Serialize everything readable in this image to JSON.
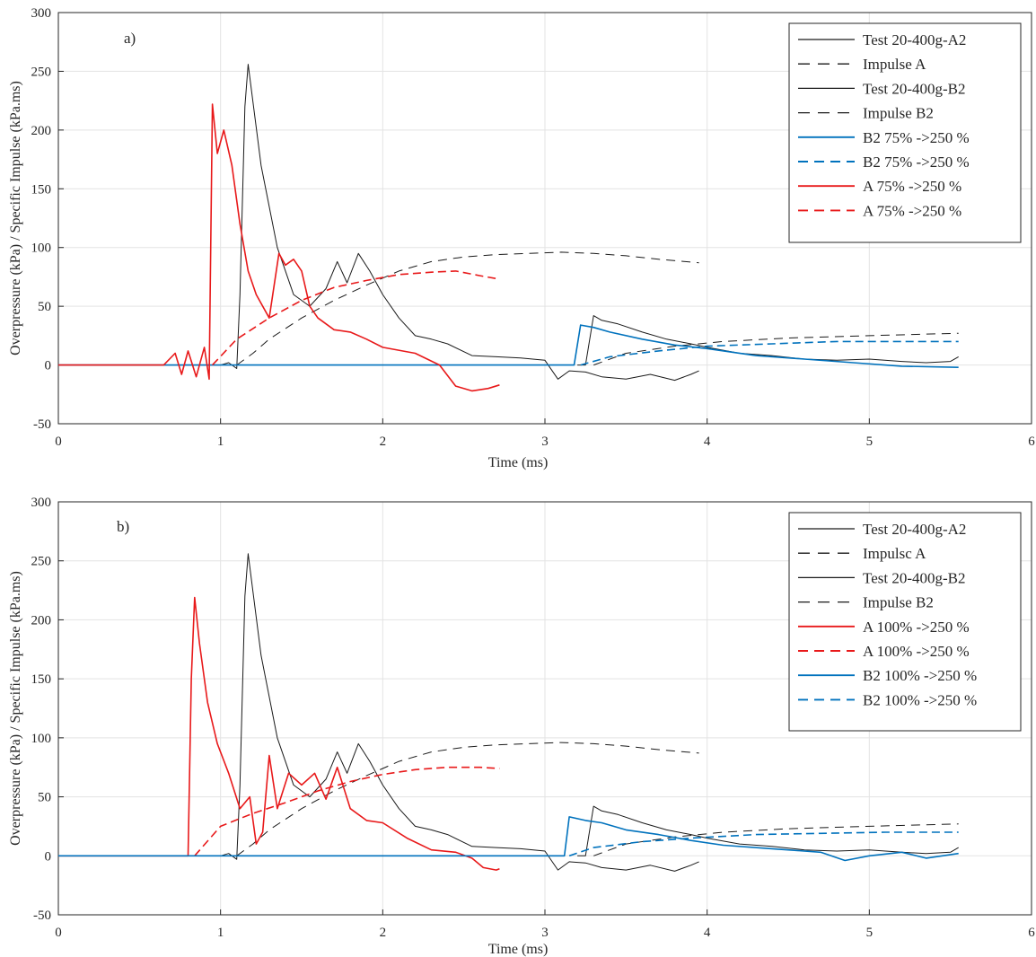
{
  "chart_data": [
    {
      "type": "line",
      "panel_label": "a)",
      "xlabel": "Time (ms)",
      "ylabel": "Overpressure (kPa) / Specific Impulse (kPa.ms)",
      "xlim": [
        0,
        6
      ],
      "ylim": [
        -50,
        300
      ],
      "xticks": [
        0,
        1,
        2,
        3,
        4,
        5,
        6
      ],
      "yticks": [
        -50,
        0,
        50,
        100,
        150,
        200,
        250,
        300
      ],
      "grid": true,
      "legend_position": "top-right",
      "series": [
        {
          "name": "Test 20-400g-A2",
          "color": "#1a1a1a",
          "dash": "solid",
          "width": 1.0,
          "x": [
            0,
            0.9,
            1.0,
            1.05,
            1.1,
            1.12,
            1.15,
            1.17,
            1.25,
            1.35,
            1.45,
            1.55,
            1.65,
            1.72,
            1.78,
            1.85,
            1.92,
            2.0,
            2.1,
            2.2,
            2.3,
            2.4,
            2.55,
            2.7,
            2.85,
            3.0,
            3.08,
            3.15,
            3.25,
            3.35,
            3.5,
            3.65,
            3.8,
            3.9,
            3.95
          ],
          "y": [
            0,
            0,
            0,
            2,
            -3,
            60,
            220,
            256,
            170,
            100,
            60,
            50,
            65,
            88,
            70,
            95,
            80,
            60,
            40,
            25,
            22,
            18,
            8,
            7,
            6,
            4,
            -12,
            -5,
            -6,
            -10,
            -12,
            -8,
            -13,
            -8,
            -5
          ]
        },
        {
          "name": "Impulse A",
          "color": "#1a1a1a",
          "dash": "longdash",
          "width": 1.0,
          "x": [
            1.1,
            1.2,
            1.3,
            1.5,
            1.7,
            1.9,
            2.1,
            2.3,
            2.5,
            2.7,
            2.9,
            3.1,
            3.3,
            3.5,
            3.7,
            3.95
          ],
          "y": [
            0,
            10,
            22,
            40,
            55,
            68,
            80,
            88,
            92,
            94,
            95,
            96,
            95,
            93,
            90,
            87
          ]
        },
        {
          "name": "Test 20-400g-B2",
          "color": "#1a1a1a",
          "dash": "solid",
          "width": 1.0,
          "x": [
            3.2,
            3.25,
            3.3,
            3.35,
            3.45,
            3.6,
            3.75,
            3.9,
            4.0,
            4.2,
            4.4,
            4.6,
            4.8,
            5.0,
            5.2,
            5.35,
            5.5,
            5.55
          ],
          "y": [
            0,
            0,
            42,
            38,
            35,
            28,
            22,
            18,
            15,
            10,
            8,
            5,
            4,
            5,
            3,
            2,
            3,
            7
          ]
        },
        {
          "name": "Impulse B2",
          "color": "#1a1a1a",
          "dash": "longdash",
          "width": 1.0,
          "x": [
            3.3,
            3.5,
            3.8,
            4.1,
            4.5,
            5.0,
            5.55
          ],
          "y": [
            0,
            10,
            16,
            20,
            23,
            25,
            27
          ]
        },
        {
          "name": "B2 75% ->250 %",
          "color": "#0072bd",
          "dash": "solid",
          "width": 1.6,
          "x": [
            0,
            1.0,
            2.0,
            3.0,
            3.18,
            3.22,
            3.3,
            3.4,
            3.6,
            3.8,
            4.0,
            4.3,
            4.6,
            4.9,
            5.2,
            5.55
          ],
          "y": [
            0,
            0,
            0,
            0,
            0,
            34,
            32,
            28,
            22,
            17,
            14,
            8,
            5,
            2,
            -1,
            -2
          ]
        },
        {
          "name": "B2 75% ->250 %",
          "color": "#0072bd",
          "dash": "dash",
          "width": 1.6,
          "x": [
            3.22,
            3.4,
            3.7,
            4.0,
            4.4,
            4.8,
            5.2,
            5.55
          ],
          "y": [
            0,
            7,
            12,
            16,
            18,
            20,
            20,
            20
          ]
        },
        {
          "name": "A 75% ->250 %",
          "color": "#e8191a",
          "dash": "solid",
          "width": 1.6,
          "x": [
            0,
            0.65,
            0.72,
            0.76,
            0.8,
            0.85,
            0.9,
            0.93,
            0.95,
            0.98,
            1.02,
            1.07,
            1.12,
            1.17,
            1.22,
            1.3,
            1.36,
            1.4,
            1.45,
            1.5,
            1.55,
            1.6,
            1.7,
            1.8,
            1.9,
            2.0,
            2.2,
            2.35,
            2.45,
            2.55,
            2.65,
            2.72
          ],
          "y": [
            0,
            0,
            10,
            -8,
            12,
            -10,
            15,
            -12,
            222,
            180,
            200,
            170,
            120,
            80,
            60,
            40,
            95,
            85,
            90,
            80,
            50,
            40,
            30,
            28,
            22,
            15,
            10,
            0,
            -18,
            -22,
            -20,
            -17
          ]
        },
        {
          "name": "A 75% ->250 %",
          "color": "#e8191a",
          "dash": "dash",
          "width": 1.6,
          "x": [
            0.95,
            1.1,
            1.3,
            1.5,
            1.7,
            1.9,
            2.1,
            2.3,
            2.45,
            2.6,
            2.72
          ],
          "y": [
            0,
            22,
            40,
            55,
            66,
            72,
            77,
            79,
            80,
            76,
            73
          ]
        }
      ]
    },
    {
      "type": "line",
      "panel_label": "b)",
      "xlabel": "Time (ms)",
      "ylabel": "Overpressure (kPa) / Specific Impulse (kPa.ms)",
      "xlim": [
        0,
        6
      ],
      "ylim": [
        -50,
        300
      ],
      "xticks": [
        0,
        1,
        2,
        3,
        4,
        5,
        6
      ],
      "yticks": [
        -50,
        0,
        50,
        100,
        150,
        200,
        250,
        300
      ],
      "grid": true,
      "legend_position": "top-right",
      "series": [
        {
          "name": "Test 20-400g-A2",
          "color": "#1a1a1a",
          "dash": "solid",
          "width": 1.0,
          "x": [
            0,
            0.9,
            1.0,
            1.05,
            1.1,
            1.12,
            1.15,
            1.17,
            1.25,
            1.35,
            1.45,
            1.55,
            1.65,
            1.72,
            1.78,
            1.85,
            1.92,
            2.0,
            2.1,
            2.2,
            2.3,
            2.4,
            2.55,
            2.7,
            2.85,
            3.0,
            3.08,
            3.15,
            3.25,
            3.35,
            3.5,
            3.65,
            3.8,
            3.9,
            3.95
          ],
          "y": [
            0,
            0,
            0,
            2,
            -3,
            60,
            220,
            256,
            170,
            100,
            60,
            50,
            65,
            88,
            70,
            95,
            80,
            60,
            40,
            25,
            22,
            18,
            8,
            7,
            6,
            4,
            -12,
            -5,
            -6,
            -10,
            -12,
            -8,
            -13,
            -8,
            -5
          ]
        },
        {
          "name": "Impulsc A",
          "color": "#1a1a1a",
          "dash": "longdash",
          "width": 1.0,
          "x": [
            1.1,
            1.2,
            1.3,
            1.5,
            1.7,
            1.9,
            2.1,
            2.3,
            2.5,
            2.7,
            2.9,
            3.1,
            3.3,
            3.5,
            3.7,
            3.95
          ],
          "y": [
            0,
            10,
            22,
            40,
            55,
            68,
            80,
            88,
            92,
            94,
            95,
            96,
            95,
            93,
            90,
            87
          ]
        },
        {
          "name": "Test 20-400g-B2",
          "color": "#1a1a1a",
          "dash": "solid",
          "width": 1.0,
          "x": [
            3.2,
            3.25,
            3.3,
            3.35,
            3.45,
            3.6,
            3.75,
            3.9,
            4.0,
            4.2,
            4.4,
            4.6,
            4.8,
            5.0,
            5.2,
            5.35,
            5.5,
            5.55
          ],
          "y": [
            0,
            0,
            42,
            38,
            35,
            28,
            22,
            18,
            15,
            10,
            8,
            5,
            4,
            5,
            3,
            2,
            3,
            7
          ]
        },
        {
          "name": "Impulse B2",
          "color": "#1a1a1a",
          "dash": "longdash",
          "width": 1.0,
          "x": [
            3.3,
            3.5,
            3.8,
            4.1,
            4.5,
            5.0,
            5.55
          ],
          "y": [
            0,
            10,
            16,
            20,
            23,
            25,
            27
          ]
        },
        {
          "name": "A 100% ->250 %",
          "color": "#e8191a",
          "dash": "solid",
          "width": 1.6,
          "x": [
            0,
            0.8,
            0.82,
            0.84,
            0.87,
            0.92,
            0.98,
            1.05,
            1.12,
            1.18,
            1.22,
            1.26,
            1.3,
            1.35,
            1.42,
            1.5,
            1.58,
            1.65,
            1.72,
            1.8,
            1.9,
            2.0,
            2.15,
            2.3,
            2.45,
            2.55,
            2.62,
            2.7,
            2.72
          ],
          "y": [
            0,
            0,
            150,
            219,
            180,
            130,
            95,
            70,
            40,
            50,
            10,
            20,
            85,
            40,
            70,
            60,
            70,
            48,
            75,
            40,
            30,
            28,
            15,
            5,
            3,
            -2,
            -10,
            -12,
            -11
          ]
        },
        {
          "name": "A 100% ->250 %",
          "color": "#e8191a",
          "dash": "dash",
          "width": 1.6,
          "x": [
            0.84,
            1.0,
            1.2,
            1.4,
            1.6,
            1.8,
            2.0,
            2.2,
            2.4,
            2.6,
            2.72
          ],
          "y": [
            0,
            25,
            36,
            45,
            55,
            63,
            69,
            73,
            75,
            75,
            74
          ]
        },
        {
          "name": "B2 100% ->250 %",
          "color": "#0072bd",
          "dash": "solid",
          "width": 1.6,
          "x": [
            0,
            1.0,
            2.0,
            3.0,
            3.12,
            3.15,
            3.25,
            3.35,
            3.5,
            3.7,
            3.9,
            4.1,
            4.4,
            4.7,
            4.85,
            5.0,
            5.2,
            5.35,
            5.55
          ],
          "y": [
            0,
            0,
            0,
            0,
            0,
            33,
            30,
            28,
            22,
            18,
            13,
            9,
            6,
            3,
            -4,
            0,
            3,
            -2,
            2
          ]
        },
        {
          "name": "B2 100% ->250 %",
          "color": "#0072bd",
          "dash": "dash",
          "width": 1.6,
          "x": [
            3.15,
            3.3,
            3.6,
            3.9,
            4.3,
            4.7,
            5.1,
            5.55
          ],
          "y": [
            0,
            7,
            12,
            15,
            18,
            19,
            20,
            20
          ]
        }
      ]
    }
  ]
}
